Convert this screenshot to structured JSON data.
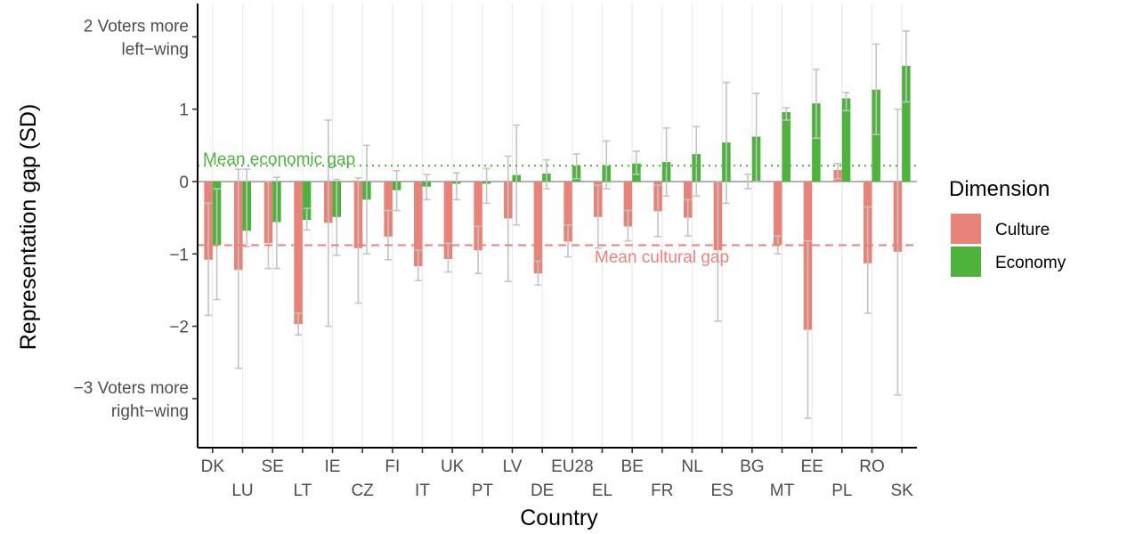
{
  "chart_data": {
    "type": "bar",
    "xlabel": "Country",
    "ylabel": "Representation gap (SD)",
    "ylim": [
      -3.6,
      2.45
    ],
    "y_ticks": [
      {
        "value": 2,
        "label_lines": [
          "2 Voters more",
          "left−wing"
        ]
      },
      {
        "value": 1,
        "label_lines": [
          "1"
        ]
      },
      {
        "value": 0,
        "label_lines": [
          "0"
        ]
      },
      {
        "value": -1,
        "label_lines": [
          "−1"
        ]
      },
      {
        "value": -2,
        "label_lines": [
          "−2"
        ]
      },
      {
        "value": -3,
        "label_lines": [
          "−3 Voters more",
          "right−wing"
        ]
      }
    ],
    "categories": [
      "DK",
      "LU",
      "SE",
      "LT",
      "IE",
      "CZ",
      "FI",
      "IT",
      "UK",
      "PT",
      "LV",
      "DE",
      "EU28",
      "EL",
      "BE",
      "FR",
      "NL",
      "ES",
      "BG",
      "MT",
      "EE",
      "PL",
      "RO",
      "SK"
    ],
    "series": [
      {
        "name": "Culture",
        "color": "#e8837a",
        "values": [
          -1.08,
          -1.22,
          -0.85,
          -1.97,
          -0.57,
          -0.92,
          -0.76,
          -1.17,
          -1.07,
          -0.95,
          -0.51,
          -1.27,
          -0.83,
          -0.49,
          -0.62,
          -0.41,
          -0.5,
          -0.95,
          0.0,
          -0.88,
          -2.05,
          0.16,
          -1.13,
          -0.97
        ],
        "err_low": [
          -1.85,
          -2.58,
          -1.2,
          -2.12,
          -2.0,
          -1.68,
          -1.08,
          -1.37,
          -1.25,
          -1.27,
          -1.38,
          -1.43,
          -1.04,
          -0.92,
          -0.82,
          -0.76,
          -0.75,
          -1.93,
          -0.1,
          -1.0,
          -3.27,
          0.04,
          -1.82,
          -2.95
        ],
        "err_high": [
          -0.3,
          0.17,
          0.0,
          -1.82,
          0.85,
          0.05,
          -0.4,
          -0.95,
          -0.85,
          -0.62,
          0.35,
          -1.1,
          -0.6,
          -0.05,
          -0.4,
          -0.05,
          -0.25,
          0.0,
          0.1,
          -0.75,
          -0.82,
          0.25,
          -0.35,
          1.0
        ]
      },
      {
        "name": "Economy",
        "color": "#4db33d",
        "values": [
          -0.88,
          -0.68,
          -0.56,
          -0.53,
          -0.49,
          -0.25,
          -0.12,
          -0.07,
          -0.03,
          -0.03,
          0.09,
          0.11,
          0.22,
          0.22,
          0.25,
          0.27,
          0.38,
          0.54,
          0.62,
          0.96,
          1.08,
          1.15,
          1.27,
          1.6
        ],
        "err_low": [
          -1.63,
          -0.9,
          -1.2,
          -0.67,
          -1.02,
          -1.0,
          -0.4,
          -0.25,
          -0.25,
          -0.3,
          -0.6,
          -0.1,
          0.04,
          -0.1,
          0.1,
          -0.2,
          -0.2,
          -0.3,
          0.0,
          0.85,
          0.6,
          0.98,
          0.65,
          1.1
        ],
        "err_high": [
          -0.1,
          0.17,
          0.06,
          -0.37,
          0.03,
          0.5,
          0.15,
          0.1,
          0.12,
          0.18,
          0.78,
          0.3,
          0.38,
          0.56,
          0.42,
          0.74,
          0.76,
          1.37,
          1.22,
          1.02,
          1.55,
          1.23,
          1.9,
          2.08
        ]
      }
    ],
    "reference_lines": [
      {
        "name": "Mean economic gap",
        "value": 0.22,
        "color": "#4db33d",
        "style": "dotted"
      },
      {
        "name": "Mean cultural gap",
        "value": -0.88,
        "color": "#e8837a",
        "style": "dashed"
      }
    ],
    "legend": {
      "title": "Dimension",
      "position": "right"
    }
  }
}
